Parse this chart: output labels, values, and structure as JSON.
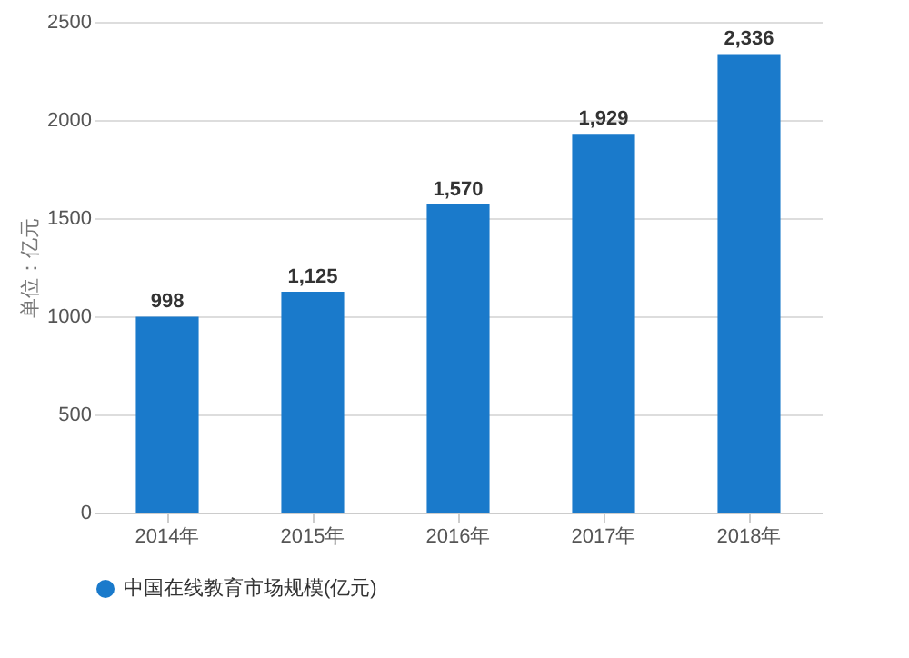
{
  "chart_data": {
    "type": "bar",
    "ylabel": "单位：亿元",
    "categories": [
      "2014年",
      "2015年",
      "2016年",
      "2017年",
      "2018年"
    ],
    "series": [
      {
        "name": "中国在线教育市场规模(亿元)",
        "color": "#1a7acb",
        "values": [
          998,
          1125,
          1570,
          1929,
          2336
        ]
      }
    ],
    "value_labels": [
      "998",
      "1,125",
      "1,570",
      "1,929",
      "2,336"
    ],
    "ylim": [
      0,
      2500
    ],
    "yticks": [
      0,
      500,
      1000,
      1500,
      2000,
      2500
    ],
    "grid": "y",
    "legend": "bottom"
  }
}
